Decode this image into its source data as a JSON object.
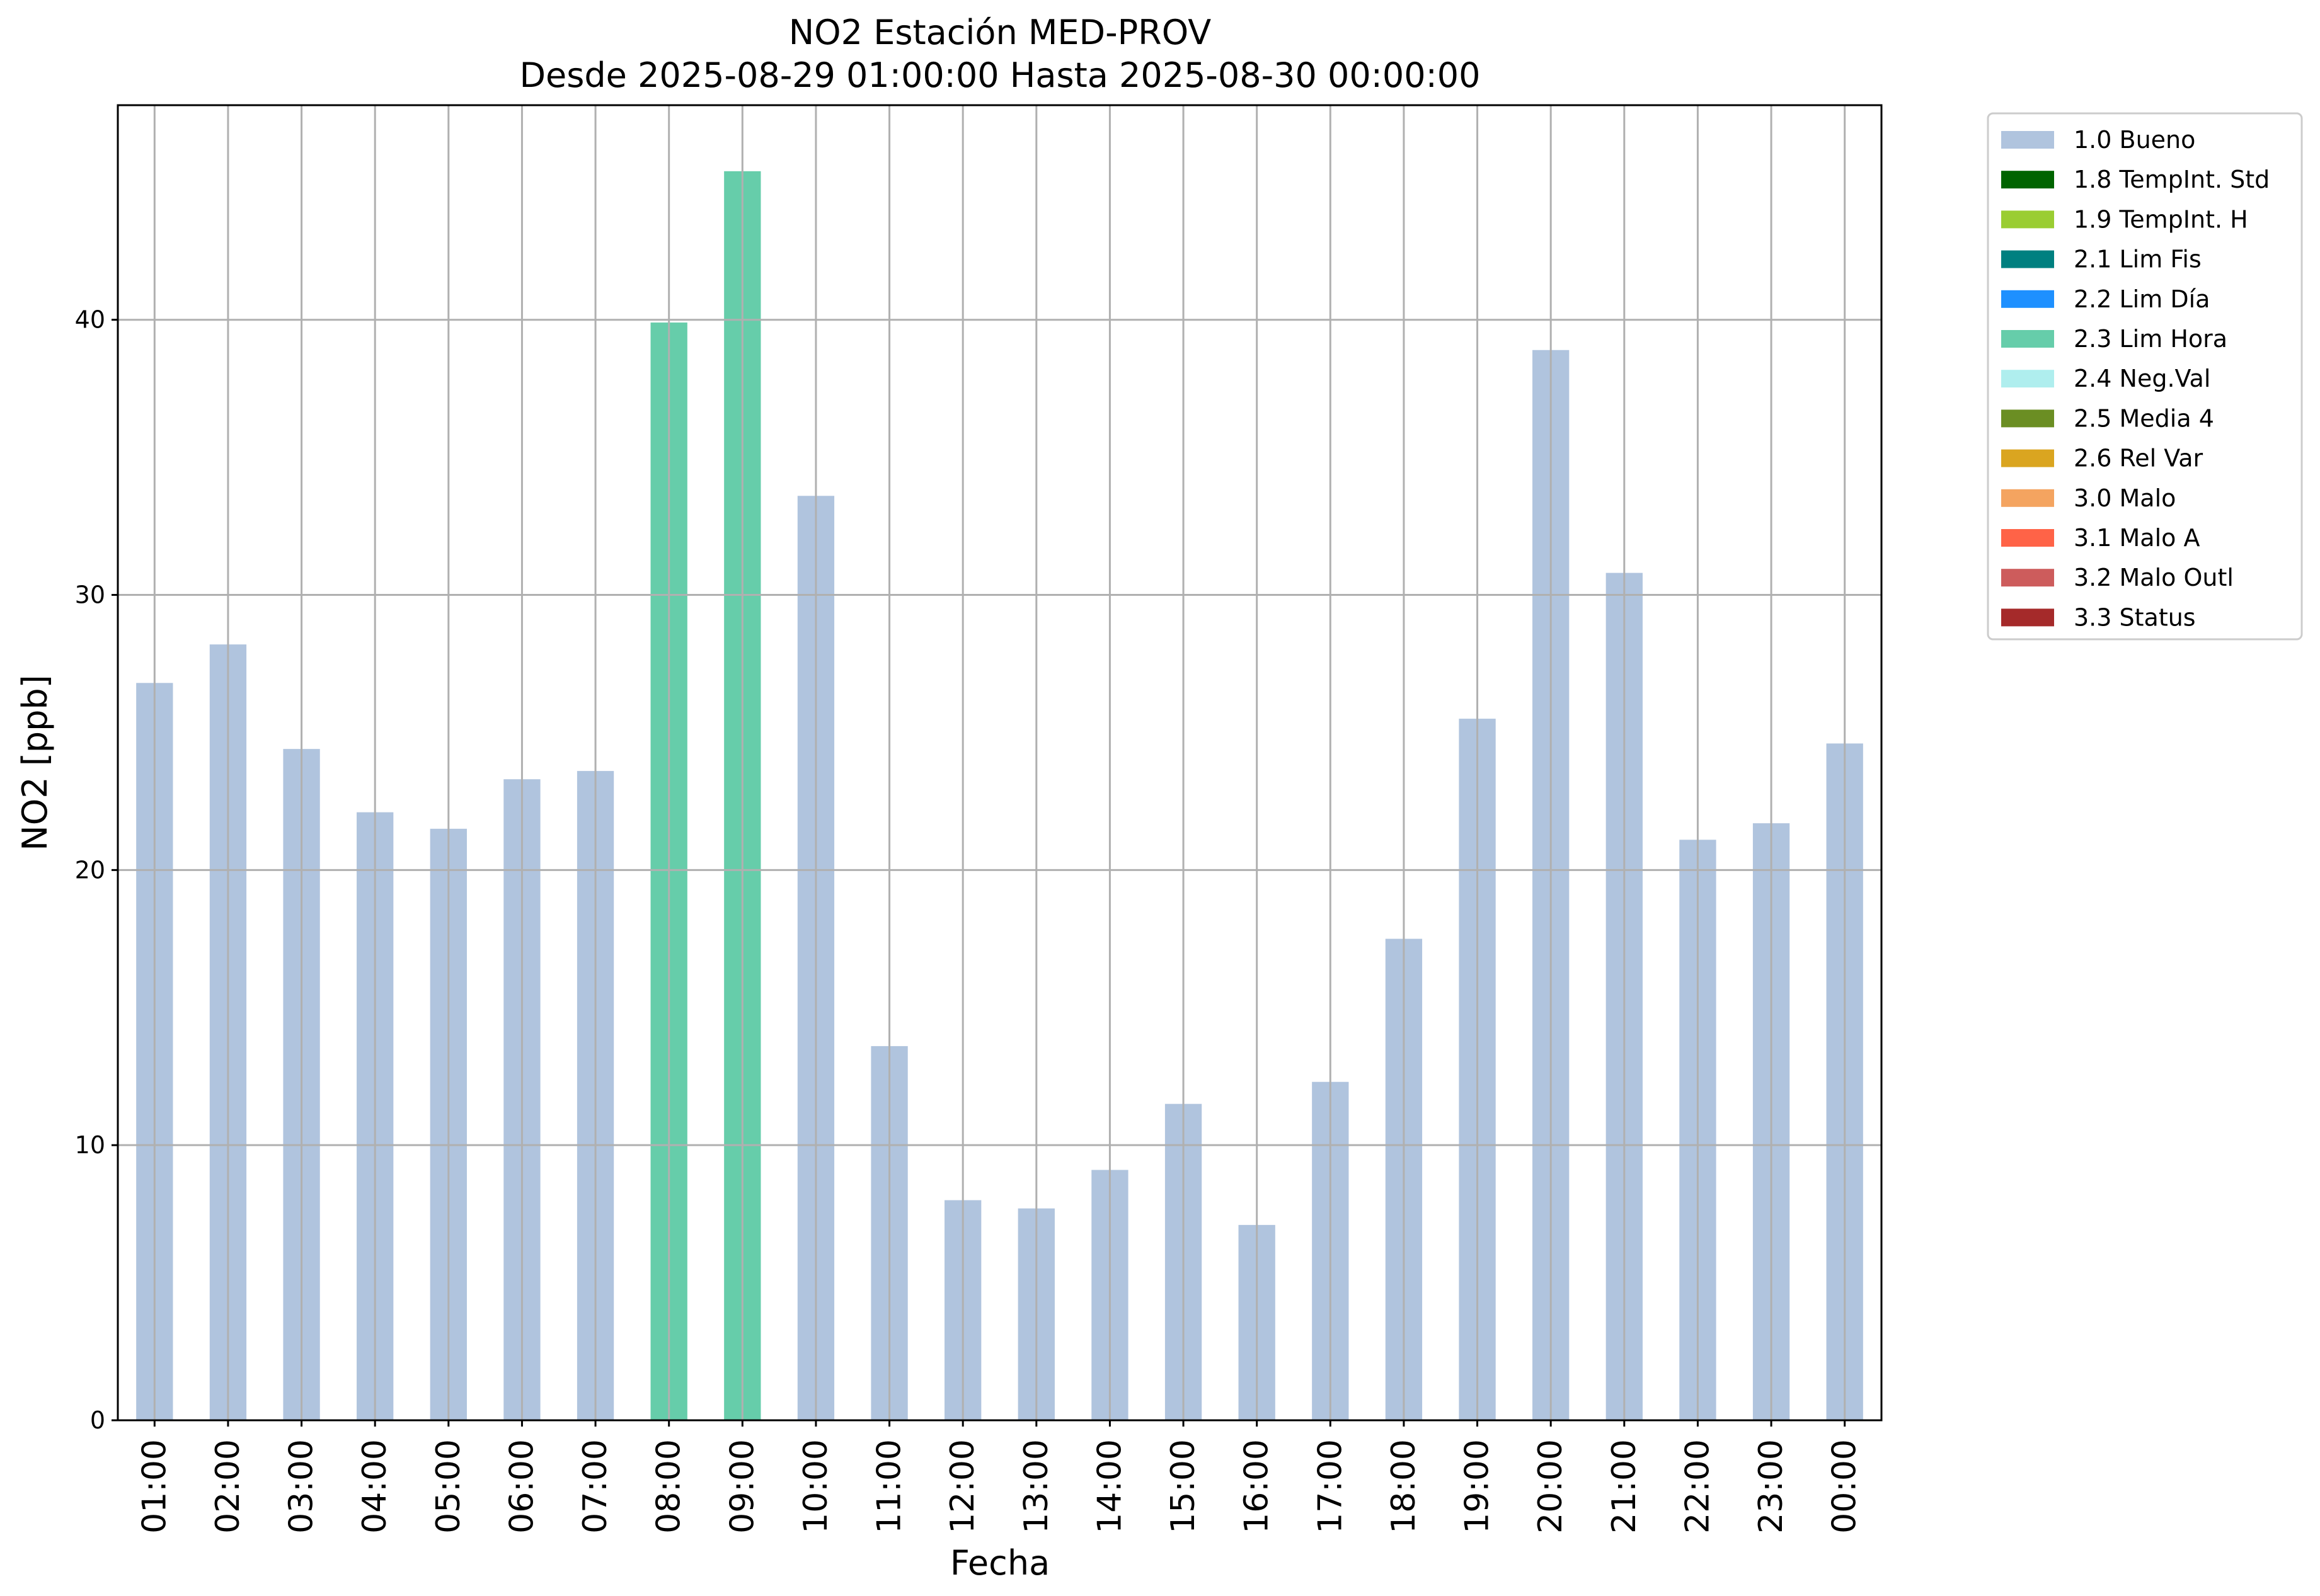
{
  "chart_data": {
    "type": "bar",
    "title": "NO2 Estación MED-PROV",
    "subtitle": "Desde 2025-08-29 01:00:00 Hasta 2025-08-30 00:00:00",
    "xlabel": "Fecha",
    "ylabel": "NO2 [ppb]",
    "ylim": [
      0,
      47.8
    ],
    "yticks": [
      0,
      10,
      20,
      30,
      40
    ],
    "grid": true,
    "legend_position": "outside-right",
    "categories": [
      "01:00",
      "02:00",
      "03:00",
      "04:00",
      "05:00",
      "06:00",
      "07:00",
      "08:00",
      "09:00",
      "10:00",
      "11:00",
      "12:00",
      "13:00",
      "14:00",
      "15:00",
      "16:00",
      "17:00",
      "18:00",
      "19:00",
      "20:00",
      "21:00",
      "22:00",
      "23:00",
      "00:00"
    ],
    "values": [
      26.8,
      28.2,
      24.4,
      22.1,
      21.5,
      23.3,
      23.6,
      39.9,
      45.4,
      33.6,
      13.6,
      8.0,
      7.7,
      9.1,
      11.5,
      7.1,
      12.3,
      17.5,
      25.5,
      38.9,
      30.8,
      21.1,
      21.7,
      24.6
    ],
    "flags": [
      "1.0 Bueno",
      "1.0 Bueno",
      "1.0 Bueno",
      "1.0 Bueno",
      "1.0 Bueno",
      "1.0 Bueno",
      "1.0 Bueno",
      "2.3 Lim Hora",
      "2.3 Lim Hora",
      "1.0 Bueno",
      "1.0 Bueno",
      "1.0 Bueno",
      "1.0 Bueno",
      "1.0 Bueno",
      "1.0 Bueno",
      "1.0 Bueno",
      "1.0 Bueno",
      "1.0 Bueno",
      "1.0 Bueno",
      "1.0 Bueno",
      "1.0 Bueno",
      "1.0 Bueno",
      "1.0 Bueno",
      "1.0 Bueno"
    ],
    "legend": [
      {
        "label": "1.0 Bueno",
        "color": "#b0c4de"
      },
      {
        "label": "1.8 TempInt. Std",
        "color": "#006400"
      },
      {
        "label": "1.9 TempInt. H",
        "color": "#9acd32"
      },
      {
        "label": "2.1 Lim Fis",
        "color": "#008080"
      },
      {
        "label": "2.2 Lim Día",
        "color": "#1e90ff"
      },
      {
        "label": "2.3 Lim Hora",
        "color": "#66cdaa"
      },
      {
        "label": "2.4 Neg.Val",
        "color": "#afeeee"
      },
      {
        "label": "2.5 Media 4",
        "color": "#6b8e23"
      },
      {
        "label": "2.6 Rel Var",
        "color": "#daa520"
      },
      {
        "label": "3.0 Malo",
        "color": "#f4a460"
      },
      {
        "label": "3.1 Malo A",
        "color": "#ff6347"
      },
      {
        "label": "3.2 Malo Outl",
        "color": "#cd5c5c"
      },
      {
        "label": "3.3 Status",
        "color": "#a52a2a"
      }
    ]
  }
}
